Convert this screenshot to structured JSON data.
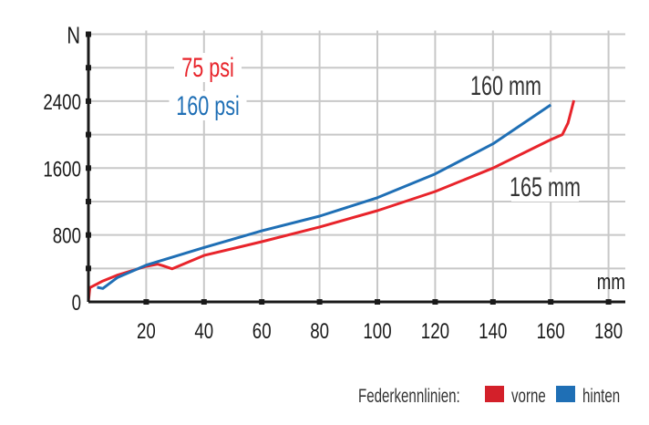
{
  "chart_data": {
    "type": "line",
    "xlabel": "mm",
    "ylabel": "N",
    "xlim": [
      0,
      180
    ],
    "ylim": [
      0,
      3200
    ],
    "x_ticks": [
      20,
      40,
      60,
      80,
      100,
      120,
      140,
      160,
      180
    ],
    "y_ticks": [
      0,
      800,
      1600,
      2400
    ],
    "grid": true,
    "series": [
      {
        "name": "vorne",
        "color": "#e8242b",
        "points": [
          [
            0,
            0
          ],
          [
            0.5,
            170
          ],
          [
            5,
            250
          ],
          [
            10,
            320
          ],
          [
            20,
            425
          ],
          [
            24,
            450
          ],
          [
            26,
            430
          ],
          [
            29,
            395
          ],
          [
            40,
            555
          ],
          [
            60,
            720
          ],
          [
            80,
            895
          ],
          [
            100,
            1090
          ],
          [
            120,
            1320
          ],
          [
            140,
            1600
          ],
          [
            160,
            1940
          ],
          [
            164,
            2000
          ],
          [
            166,
            2140
          ],
          [
            168,
            2410
          ]
        ]
      },
      {
        "name": "hinten",
        "color": "#1f6fb5",
        "points": [
          [
            3,
            175
          ],
          [
            5,
            160
          ],
          [
            10,
            290
          ],
          [
            20,
            440
          ],
          [
            40,
            650
          ],
          [
            60,
            850
          ],
          [
            80,
            1025
          ],
          [
            100,
            1245
          ],
          [
            120,
            1530
          ],
          [
            140,
            1890
          ],
          [
            160,
            2355
          ]
        ]
      }
    ],
    "annotations": [
      {
        "text": "75 psi",
        "color": "#e8242b"
      },
      {
        "text": "160 psi",
        "color": "#1f6fb5"
      },
      {
        "text": "160 mm",
        "color": "#333333"
      },
      {
        "text": "165 mm",
        "color": "#333333"
      }
    ],
    "legend": {
      "title": "Federkennlinien:",
      "placement": "bottom-right",
      "entries": [
        {
          "label": "vorne",
          "color": "#d3202a"
        },
        {
          "label": "hinten",
          "color": "#1f6fb5"
        }
      ]
    }
  }
}
